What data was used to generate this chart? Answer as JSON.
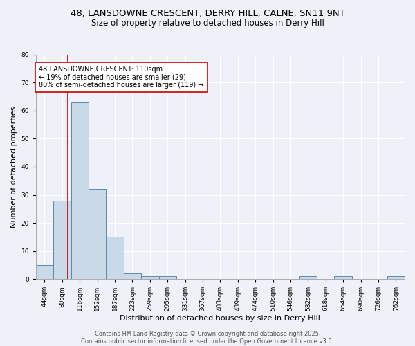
{
  "title_line1": "48, LANSDOWNE CRESCENT, DERRY HILL, CALNE, SN11 9NT",
  "title_line2": "Size of property relative to detached houses in Derry Hill",
  "xlabel": "Distribution of detached houses by size in Derry Hill",
  "ylabel": "Number of detached properties",
  "bin_labels": [
    "44sqm",
    "80sqm",
    "116sqm",
    "152sqm",
    "187sqm",
    "223sqm",
    "259sqm",
    "295sqm",
    "331sqm",
    "367sqm",
    "403sqm",
    "439sqm",
    "474sqm",
    "510sqm",
    "546sqm",
    "582sqm",
    "618sqm",
    "654sqm",
    "690sqm",
    "726sqm",
    "762sqm"
  ],
  "bar_values": [
    5,
    28,
    63,
    32,
    15,
    2,
    1,
    1,
    0,
    0,
    0,
    0,
    0,
    0,
    0,
    1,
    0,
    1,
    0,
    0,
    1
  ],
  "bar_color": "#c9d9e8",
  "bar_edge_color": "#5a8ab0",
  "ylim": [
    0,
    80
  ],
  "yticks": [
    0,
    10,
    20,
    30,
    40,
    50,
    60,
    70,
    80
  ],
  "annotation_text": "48 LANSDOWNE CRESCENT: 110sqm\n← 19% of detached houses are smaller (29)\n80% of semi-detached houses are larger (119) →",
  "annotation_box_color": "#ffffff",
  "annotation_box_edge": "#cc0000",
  "red_line_color": "#cc0000",
  "background_color": "#eef2f8",
  "plot_bg_color": "#eef2f8",
  "grid_color": "#ffffff",
  "footer_text": "Contains HM Land Registry data © Crown copyright and database right 2025.\nContains public sector information licensed under the Open Government Licence v3.0.",
  "title_fontsize": 9.5,
  "subtitle_fontsize": 8.5,
  "tick_fontsize": 6.5,
  "xlabel_fontsize": 8,
  "ylabel_fontsize": 8,
  "annotation_fontsize": 7,
  "footer_fontsize": 6
}
